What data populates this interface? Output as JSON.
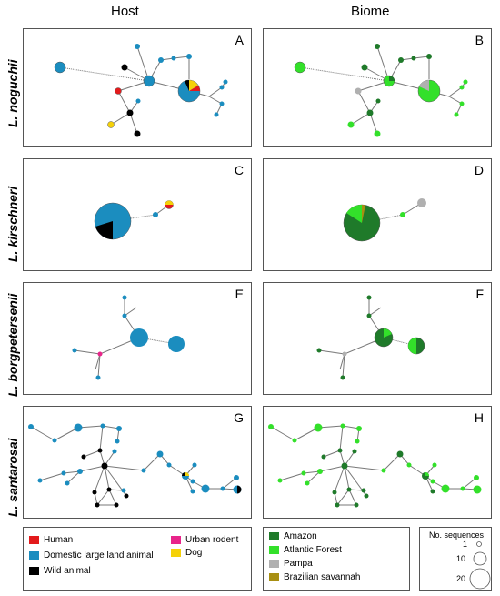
{
  "headers": {
    "host": "Host",
    "biome": "Biome"
  },
  "species": [
    "L. noguchii",
    "L. kirschneri",
    "L. borgpetersenii",
    "L. santarosai"
  ],
  "panel_letters": [
    "A",
    "B",
    "C",
    "D",
    "E",
    "F",
    "G",
    "H"
  ],
  "legend_host": {
    "items": [
      {
        "label": "Human",
        "color": "#e31a1c"
      },
      {
        "label": "Domestic large land animal",
        "color": "#1b8dbf"
      },
      {
        "label": "Wild animal",
        "color": "#000000"
      },
      {
        "label": "Urban rodent",
        "color": "#e8258a"
      },
      {
        "label": "Dog",
        "color": "#f5d108"
      }
    ]
  },
  "legend_biome": {
    "items": [
      {
        "label": "Amazon",
        "color": "#1f7a2a"
      },
      {
        "label": "Atlantic Forest",
        "color": "#33e02a"
      },
      {
        "label": "Pampa",
        "color": "#b0b0b0"
      },
      {
        "label": "Brazilian savannah",
        "color": "#a88f12"
      }
    ]
  },
  "legend_size": {
    "title": "No. sequences",
    "labels": [
      "1",
      "10",
      "20"
    ]
  }
}
